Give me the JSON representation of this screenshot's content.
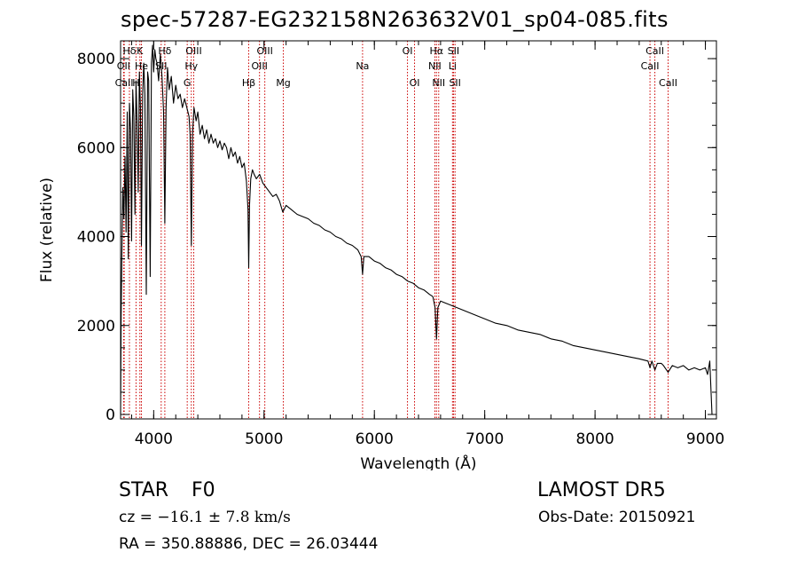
{
  "title": "spec-57287-EG232158N263632V01_sp04-085.fits",
  "info": {
    "object_class": "STAR",
    "subclass": "F0",
    "survey": "LAMOST DR5",
    "cz_label": "cz = ",
    "cz_value": "−16.1 ± 7.8 km/s",
    "obs_date": "Obs-Date: 20150921",
    "radec": "RA = 350.88886, DEC =  26.03444"
  },
  "chart_data": {
    "type": "line",
    "xlabel": "Wavelength (Å)",
    "ylabel": "Flux (relative)",
    "xlim": [
      3700,
      9100
    ],
    "ylim": [
      -100,
      8400
    ],
    "xticks": [
      4000,
      5000,
      6000,
      7000,
      8000,
      9000
    ],
    "yticks": [
      0,
      2000,
      4000,
      6000,
      8000
    ],
    "line_color": "#000000",
    "marker_color": "#cc0000",
    "series": [
      {
        "values": [
          [
            3700,
            0
          ],
          [
            3705,
            2200
          ],
          [
            3712,
            3700
          ],
          [
            3720,
            5100
          ],
          [
            3730,
            4400
          ],
          [
            3740,
            5800
          ],
          [
            3750,
            4100
          ],
          [
            3760,
            6800
          ],
          [
            3770,
            3500
          ],
          [
            3780,
            7000
          ],
          [
            3790,
            6400
          ],
          [
            3800,
            3900
          ],
          [
            3810,
            7300
          ],
          [
            3820,
            6700
          ],
          [
            3830,
            4500
          ],
          [
            3840,
            7500
          ],
          [
            3850,
            6500
          ],
          [
            3860,
            5000
          ],
          [
            3870,
            7700
          ],
          [
            3880,
            6900
          ],
          [
            3889,
            3800
          ],
          [
            3900,
            7200
          ],
          [
            3910,
            7900
          ],
          [
            3920,
            7200
          ],
          [
            3933,
            2700
          ],
          [
            3945,
            7700
          ],
          [
            3955,
            7500
          ],
          [
            3968,
            3100
          ],
          [
            3980,
            7900
          ],
          [
            3990,
            8300
          ],
          [
            4000,
            7700
          ],
          [
            4010,
            8200
          ],
          [
            4020,
            8000
          ],
          [
            4030,
            7900
          ],
          [
            4045,
            7500
          ],
          [
            4060,
            8100
          ],
          [
            4075,
            7600
          ],
          [
            4090,
            6800
          ],
          [
            4101,
            4300
          ],
          [
            4112,
            6900
          ],
          [
            4125,
            7800
          ],
          [
            4140,
            7300
          ],
          [
            4160,
            7600
          ],
          [
            4180,
            7000
          ],
          [
            4200,
            7400
          ],
          [
            4220,
            7100
          ],
          [
            4240,
            7200
          ],
          [
            4260,
            6900
          ],
          [
            4280,
            7100
          ],
          [
            4300,
            6900
          ],
          [
            4320,
            6700
          ],
          [
            4330,
            6300
          ],
          [
            4341,
            3800
          ],
          [
            4352,
            6300
          ],
          [
            4365,
            6900
          ],
          [
            4385,
            6600
          ],
          [
            4400,
            6800
          ],
          [
            4420,
            6300
          ],
          [
            4440,
            6500
          ],
          [
            4460,
            6200
          ],
          [
            4480,
            6400
          ],
          [
            4500,
            6100
          ],
          [
            4520,
            6300
          ],
          [
            4540,
            6100
          ],
          [
            4560,
            6200
          ],
          [
            4580,
            6000
          ],
          [
            4600,
            6150
          ],
          [
            4620,
            5950
          ],
          [
            4640,
            6100
          ],
          [
            4660,
            6000
          ],
          [
            4680,
            5750
          ],
          [
            4700,
            6000
          ],
          [
            4720,
            5800
          ],
          [
            4740,
            5900
          ],
          [
            4760,
            5650
          ],
          [
            4780,
            5800
          ],
          [
            4800,
            5550
          ],
          [
            4820,
            5650
          ],
          [
            4840,
            5250
          ],
          [
            4855,
            4600
          ],
          [
            4861,
            3300
          ],
          [
            4868,
            4700
          ],
          [
            4880,
            5300
          ],
          [
            4895,
            5500
          ],
          [
            4910,
            5400
          ],
          [
            4930,
            5300
          ],
          [
            4960,
            5400
          ],
          [
            4990,
            5200
          ],
          [
            5020,
            5100
          ],
          [
            5050,
            5000
          ],
          [
            5080,
            4900
          ],
          [
            5110,
            4950
          ],
          [
            5140,
            4800
          ],
          [
            5170,
            4550
          ],
          [
            5200,
            4700
          ],
          [
            5250,
            4600
          ],
          [
            5300,
            4500
          ],
          [
            5350,
            4450
          ],
          [
            5400,
            4400
          ],
          [
            5450,
            4300
          ],
          [
            5500,
            4250
          ],
          [
            5550,
            4150
          ],
          [
            5600,
            4100
          ],
          [
            5650,
            4000
          ],
          [
            5700,
            3950
          ],
          [
            5750,
            3850
          ],
          [
            5800,
            3800
          ],
          [
            5850,
            3700
          ],
          [
            5880,
            3550
          ],
          [
            5893,
            3150
          ],
          [
            5905,
            3550
          ],
          [
            5950,
            3550
          ],
          [
            6000,
            3450
          ],
          [
            6050,
            3400
          ],
          [
            6100,
            3300
          ],
          [
            6150,
            3250
          ],
          [
            6200,
            3150
          ],
          [
            6250,
            3100
          ],
          [
            6300,
            3000
          ],
          [
            6350,
            2950
          ],
          [
            6400,
            2850
          ],
          [
            6450,
            2800
          ],
          [
            6500,
            2700
          ],
          [
            6530,
            2650
          ],
          [
            6550,
            2400
          ],
          [
            6563,
            1700
          ],
          [
            6575,
            2400
          ],
          [
            6600,
            2550
          ],
          [
            6650,
            2500
          ],
          [
            6700,
            2450
          ],
          [
            6750,
            2400
          ],
          [
            6800,
            2350
          ],
          [
            6850,
            2300
          ],
          [
            6900,
            2250
          ],
          [
            6950,
            2200
          ],
          [
            7000,
            2150
          ],
          [
            7100,
            2050
          ],
          [
            7200,
            2000
          ],
          [
            7300,
            1900
          ],
          [
            7400,
            1850
          ],
          [
            7500,
            1800
          ],
          [
            7600,
            1700
          ],
          [
            7700,
            1650
          ],
          [
            7800,
            1550
          ],
          [
            7900,
            1500
          ],
          [
            8000,
            1450
          ],
          [
            8100,
            1400
          ],
          [
            8200,
            1350
          ],
          [
            8300,
            1300
          ],
          [
            8400,
            1250
          ],
          [
            8480,
            1200
          ],
          [
            8498,
            1050
          ],
          [
            8515,
            1200
          ],
          [
            8542,
            1000
          ],
          [
            8565,
            1150
          ],
          [
            8600,
            1150
          ],
          [
            8620,
            1100
          ],
          [
            8662,
            950
          ],
          [
            8700,
            1100
          ],
          [
            8750,
            1050
          ],
          [
            8800,
            1100
          ],
          [
            8850,
            1000
          ],
          [
            8900,
            1050
          ],
          [
            8950,
            1000
          ],
          [
            9000,
            1050
          ],
          [
            9020,
            900
          ],
          [
            9040,
            1200
          ],
          [
            9060,
            0
          ]
        ]
      }
    ],
    "lines": [
      {
        "label": "Hδ",
        "x": 3780,
        "row": 0
      },
      {
        "label": "OII",
        "x": 3727,
        "row": 1
      },
      {
        "label": "CaII",
        "x": 3733,
        "row": 2
      },
      {
        "label": "K",
        "x": 3875,
        "row": 0
      },
      {
        "label": "He",
        "x": 3889,
        "row": 1
      },
      {
        "label": "H",
        "x": 3840,
        "row": 2
      },
      {
        "label": "Hδ",
        "x": 4101,
        "row": 0
      },
      {
        "label": "SII",
        "x": 4068,
        "row": 1
      },
      {
        "label": "OIII",
        "x": 4363,
        "row": 0
      },
      {
        "label": "Hγ",
        "x": 4341,
        "row": 1
      },
      {
        "label": "G",
        "x": 4304,
        "row": 2
      },
      {
        "label": "OIII",
        "x": 5007,
        "row": 0
      },
      {
        "label": "OIII",
        "x": 4959,
        "row": 1
      },
      {
        "label": "Hβ",
        "x": 4861,
        "row": 2
      },
      {
        "label": "Mg",
        "x": 5175,
        "row": 2
      },
      {
        "label": "Na",
        "x": 5893,
        "row": 1
      },
      {
        "label": "OI",
        "x": 6300,
        "row": 0
      },
      {
        "label": "OI",
        "x": 6364,
        "row": 2
      },
      {
        "label": "Hα",
        "x": 6563,
        "row": 0
      },
      {
        "label": "NII",
        "x": 6548,
        "row": 1
      },
      {
        "label": "NII",
        "x": 6583,
        "row": 2
      },
      {
        "label": "SII",
        "x": 6717,
        "row": 0
      },
      {
        "label": "Li",
        "x": 6708,
        "row": 1
      },
      {
        "label": "SII",
        "x": 6731,
        "row": 2
      },
      {
        "label": "CaII",
        "x": 8542,
        "row": 0
      },
      {
        "label": "CaII",
        "x": 8498,
        "row": 1
      },
      {
        "label": "CaII",
        "x": 8662,
        "row": 2
      }
    ]
  }
}
